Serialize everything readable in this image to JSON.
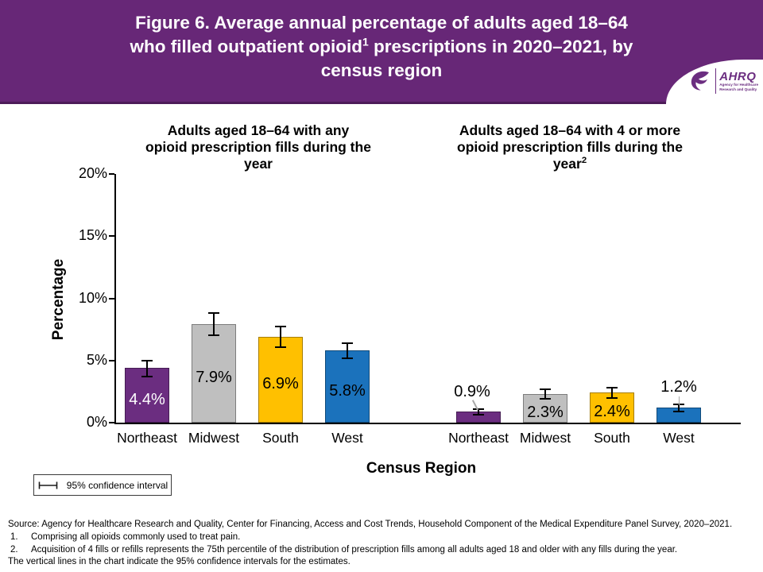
{
  "header": {
    "title_line1": "Figure 6. Average annual percentage of adults aged 18–64",
    "title_line2_pre": "who filled outpatient opioid",
    "title_line2_sup": "1",
    "title_line2_post": " prescriptions in 2020–2021, by",
    "title_line3": "census region",
    "logo": {
      "acronym": "AHRQ",
      "tagline_line1": "Agency for Healthcare",
      "tagline_line2": "Research and Quality"
    }
  },
  "chart_data": {
    "type": "bar",
    "title": "Figure 6. Average annual percentage of adults aged 18–64 who filled outpatient opioid prescriptions in 2020–2021, by census region",
    "xlabel": "Census Region",
    "ylabel": "Percentage",
    "ylim": [
      0,
      20
    ],
    "yticks": [
      "0%",
      "5%",
      "10%",
      "15%",
      "20%"
    ],
    "grid": false,
    "categories": [
      "Northeast",
      "Midwest",
      "South",
      "West"
    ],
    "groups": [
      {
        "subtitle_lines": [
          "Adults aged 18–64 with any",
          "opioid prescription fills during the",
          "year"
        ],
        "subtitle_sup": "",
        "bars": [
          {
            "category": "Northeast",
            "value": 4.4,
            "label": "4.4%",
            "ci_low": 3.7,
            "ci_high": 5.0,
            "color": "#6B2D80",
            "label_color": "#ffffff",
            "label_position": "inside"
          },
          {
            "category": "Midwest",
            "value": 7.9,
            "label": "7.9%",
            "ci_low": 7.0,
            "ci_high": 8.8,
            "color": "#BFBFBF",
            "label_color": "#000000",
            "label_position": "inside"
          },
          {
            "category": "South",
            "value": 6.9,
            "label": "6.9%",
            "ci_low": 6.1,
            "ci_high": 7.7,
            "color": "#FFC000",
            "label_color": "#000000",
            "label_position": "inside"
          },
          {
            "category": "West",
            "value": 5.8,
            "label": "5.8%",
            "ci_low": 5.2,
            "ci_high": 6.4,
            "color": "#1B72BC",
            "label_color": "#000000",
            "label_position": "inside"
          }
        ]
      },
      {
        "subtitle_lines": [
          "Adults aged 18–64 with 4 or more",
          "opioid prescription fills during the",
          "year"
        ],
        "subtitle_sup": "2",
        "bars": [
          {
            "category": "Northeast",
            "value": 0.9,
            "label": "0.9%",
            "ci_low": 0.65,
            "ci_high": 1.1,
            "color": "#6B2D80",
            "label_color": "#000000",
            "label_position": "above-diagonal"
          },
          {
            "category": "Midwest",
            "value": 2.3,
            "label": "2.3%",
            "ci_low": 1.9,
            "ci_high": 2.7,
            "color": "#BFBFBF",
            "label_color": "#000000",
            "label_position": "inside"
          },
          {
            "category": "South",
            "value": 2.4,
            "label": "2.4%",
            "ci_low": 2.0,
            "ci_high": 2.8,
            "color": "#FFC000",
            "label_color": "#000000",
            "label_position": "inside"
          },
          {
            "category": "West",
            "value": 1.2,
            "label": "1.2%",
            "ci_low": 0.9,
            "ci_high": 1.45,
            "color": "#1B72BC",
            "label_color": "#000000",
            "label_position": "above"
          }
        ]
      }
    ],
    "legend": {
      "label": "95% confidence interval",
      "position": "bottom-left"
    }
  },
  "footer": {
    "source": "Source: Agency for Healthcare Research and Quality, Center for Financing, Access and Cost Trends, Household Component of the Medical Expenditure Panel Survey, 2020–2021.",
    "notes": [
      {
        "marker": "1.",
        "text": "Comprising all opioids commonly used to treat pain."
      },
      {
        "marker": "2.",
        "text": "Acquisition of 4 fills or refills represents the 75th percentile of the distribution of prescription fills among all adults aged 18 and older with any fills during the year."
      }
    ],
    "ci_note": "The vertical lines in the chart indicate the 95% confidence intervals for the estimates."
  },
  "colors": {
    "banner": "#672777",
    "banner_border": "#4d1c59",
    "northeast": "#6B2D80",
    "midwest": "#BFBFBF",
    "south": "#FFC000",
    "west": "#1B72BC"
  }
}
